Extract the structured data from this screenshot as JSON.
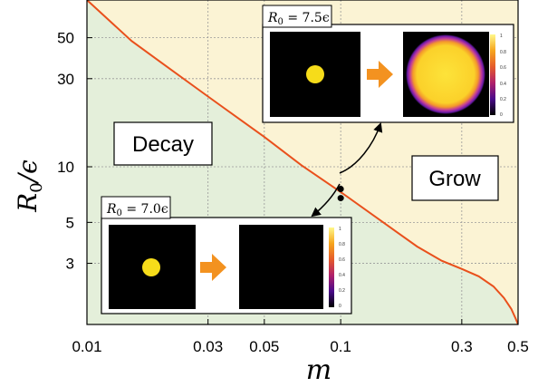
{
  "chart_data": {
    "type": "line",
    "xlabel": "m",
    "ylabel": "R0/ε",
    "xscale": "log",
    "yscale": "log",
    "xlim": [
      0.01,
      0.5
    ],
    "ylim": [
      1.4,
      80
    ],
    "xticks": [
      {
        "value": 0.01,
        "label": "0.01"
      },
      {
        "value": 0.03,
        "label": "0.03"
      },
      {
        "value": 0.05,
        "label": "0.05"
      },
      {
        "value": 0.1,
        "label": "0.1"
      },
      {
        "value": 0.3,
        "label": "0.3"
      },
      {
        "value": 0.5,
        "label": "0.5"
      }
    ],
    "yticks": [
      {
        "value": 3,
        "label": "3"
      },
      {
        "value": 5,
        "label": "5"
      },
      {
        "value": 10,
        "label": "10"
      },
      {
        "value": 30,
        "label": "30"
      },
      {
        "value": 50,
        "label": "50"
      }
    ],
    "grid": true,
    "series": [
      {
        "color": "#e9501c",
        "x": [
          0.01,
          0.015,
          0.02,
          0.03,
          0.05,
          0.07,
          0.1,
          0.15,
          0.2,
          0.25,
          0.3,
          0.35,
          0.4,
          0.44,
          0.47,
          0.49,
          0.5
        ],
        "y": [
          80,
          48,
          36,
          24,
          14.5,
          10.2,
          7.3,
          4.9,
          3.7,
          3.1,
          2.8,
          2.55,
          2.25,
          1.95,
          1.7,
          1.5,
          1.4
        ]
      }
    ],
    "regions": [
      {
        "label": "Decay",
        "color": "#e4efda",
        "side": "below"
      },
      {
        "label": "Grow",
        "color": "#fbf3d4",
        "side": "above"
      }
    ],
    "markers": [
      {
        "x": 0.1,
        "y": 7.5
      },
      {
        "x": 0.1,
        "y": 7.0
      }
    ],
    "insets": [
      {
        "label": "R_0 = 7.5ε",
        "m": 0.1,
        "R0": 7.5,
        "outcome": "Grow",
        "colorbar_ticks": [
          "1",
          "0.8",
          "0.6",
          "0.4",
          "0.2",
          "0"
        ]
      },
      {
        "label": "R_0 = 7.0ε",
        "m": 0.1,
        "R0": 7.0,
        "outcome": "Decay",
        "colorbar_ticks": [
          "1",
          "0.8",
          "0.6",
          "0.4",
          "0.2",
          "0"
        ]
      }
    ],
    "colors": {
      "decay_region": "#e4efda",
      "grow_region": "#fbf3d4",
      "boundary": "#e9501c",
      "arrow": "#f39220",
      "droplet": "#f6dc1a"
    }
  },
  "labels": {
    "decay": "Decay",
    "grow": "Grow",
    "inset_top": "R",
    "inset_top_sub": "0",
    "inset_top_rest": " = 7.5ϵ",
    "inset_bottom": "R",
    "inset_bottom_sub": "0",
    "inset_bottom_rest": " = 7.0ϵ",
    "xlabel": "m",
    "ylabel_main": "R",
    "ylabel_sub": "0",
    "ylabel_rest": "/ϵ"
  }
}
